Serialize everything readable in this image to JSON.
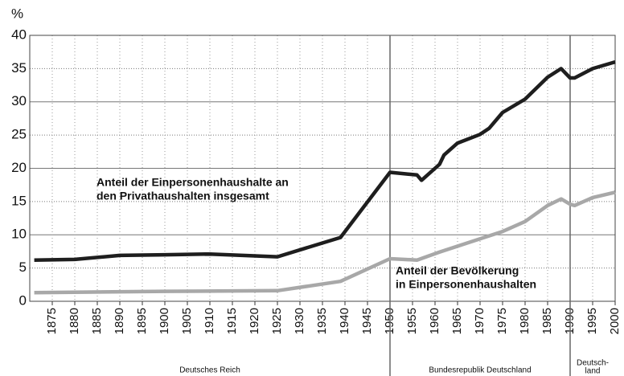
{
  "chart_data": {
    "type": "line",
    "ylabel": "%",
    "xlim": [
      1870,
      2000
    ],
    "ylim": [
      0,
      40
    ],
    "yticks": [
      0,
      5,
      10,
      15,
      20,
      25,
      30,
      35,
      40
    ],
    "xticks": [
      1875,
      1880,
      1885,
      1890,
      1895,
      1900,
      1905,
      1910,
      1915,
      1920,
      1925,
      1930,
      1935,
      1940,
      1945,
      1950,
      1955,
      1960,
      1965,
      1970,
      1975,
      1980,
      1985,
      1990,
      1995,
      2000
    ],
    "grid": true,
    "dividers": [
      1950,
      1990
    ],
    "periods": [
      {
        "lines": [
          "Deutsches Reich"
        ],
        "from": 1870,
        "to": 1950
      },
      {
        "lines": [
          "Bundesrepublik Deutschland"
        ],
        "from": 1950,
        "to": 1990
      },
      {
        "lines": [
          "Deutsch-",
          "land"
        ],
        "from": 1990,
        "to": 2000
      }
    ],
    "series": [
      {
        "name": [
          "Anteil der Einpersonenhaushalte an",
          "den Privathaushalten insgesamt"
        ],
        "color": "#1e1e1e",
        "x": [
          1871,
          1880,
          1890,
          1900,
          1910,
          1925,
          1939,
          1950,
          1956,
          1957,
          1961,
          1962,
          1965,
          1970,
          1972,
          1975,
          1980,
          1985,
          1988,
          1990,
          1991,
          1995,
          2000
        ],
        "values": [
          6.2,
          6.3,
          6.9,
          7.0,
          7.1,
          6.7,
          9.6,
          19.4,
          19.0,
          18.2,
          20.6,
          22.0,
          23.8,
          25.1,
          26.0,
          28.4,
          30.4,
          33.7,
          35.0,
          33.6,
          33.6,
          35.0,
          36.0
        ]
      },
      {
        "name": [
          "Anteil der Bevölkerung",
          "in Einpersonenhaushalten"
        ],
        "color": "#a8a8a8",
        "x": [
          1871,
          1900,
          1925,
          1939,
          1950,
          1956,
          1961,
          1970,
          1975,
          1980,
          1985,
          1988,
          1990,
          1991,
          1995,
          2000
        ],
        "values": [
          1.3,
          1.5,
          1.6,
          3.0,
          6.4,
          6.2,
          7.4,
          9.4,
          10.5,
          12.0,
          14.4,
          15.4,
          14.6,
          14.4,
          15.6,
          16.4
        ]
      }
    ]
  }
}
